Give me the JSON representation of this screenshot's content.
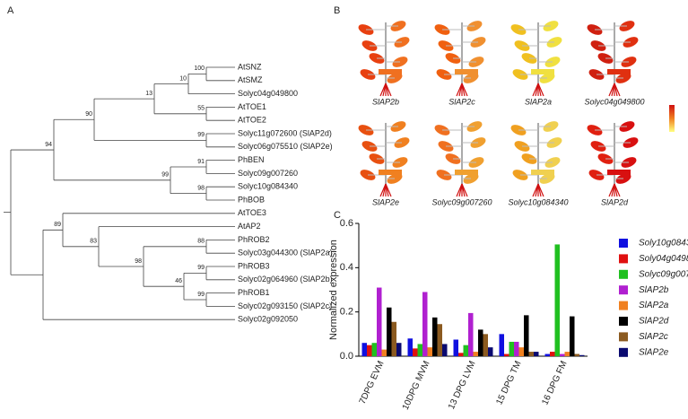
{
  "panel_a": {
    "letter": "A",
    "tree": {
      "children": [
        {
          "support": 94,
          "children": [
            {
              "support": 90,
              "children": [
                {
                  "support": 13,
                  "children": [
                    {
                      "support": 10,
                      "children": [
                        {
                          "support": 100,
                          "children": [
                            {
                              "label": "AtSNZ"
                            },
                            {
                              "label": "AtSMZ"
                            }
                          ]
                        },
                        {
                          "label": "Solyc04g049800"
                        }
                      ]
                    },
                    {
                      "support": 55,
                      "children": [
                        {
                          "label": "AtTOE1"
                        },
                        {
                          "label": "AtTOE2"
                        }
                      ]
                    }
                  ]
                },
                {
                  "support": 99,
                  "children": [
                    {
                      "label": "Solyc11g072600 (SlAP2d)"
                    },
                    {
                      "label": "Solyc06g075510 (SlAP2e)"
                    }
                  ]
                }
              ]
            },
            {
              "support": 99,
              "children": [
                {
                  "support": 91,
                  "children": [
                    {
                      "label": "PhBEN"
                    },
                    {
                      "label": "Solyc09g007260"
                    }
                  ]
                },
                {
                  "support": 98,
                  "children": [
                    {
                      "label": "Solyc10g084340"
                    },
                    {
                      "label": "PhBOB"
                    }
                  ]
                }
              ]
            }
          ]
        },
        {
          "children": [
            {
              "support": 89,
              "children": [
                {
                  "label": "AtTOE3"
                },
                {
                  "support": 83,
                  "children": [
                    {
                      "label": "AtAP2"
                    },
                    {
                      "support": 98,
                      "children": [
                        {
                          "support": 88,
                          "children": [
                            {
                              "label": "PhROB2"
                            },
                            {
                              "label": "Solyc03g044300 (SlAP2a)"
                            }
                          ]
                        },
                        {
                          "support": 46,
                          "children": [
                            {
                              "support": 99,
                              "children": [
                                {
                                  "label": "PhROB3"
                                },
                                {
                                  "label": "Solyc02g064960 (SlAP2b)"
                                }
                              ]
                            },
                            {
                              "support": 99,
                              "children": [
                                {
                                  "label": "PhROB1"
                                },
                                {
                                  "label": "Solyc02g093150 (SlAP2c)"
                                }
                              ]
                            }
                          ]
                        }
                      ]
                    }
                  ]
                }
              ]
            },
            {
              "label": "Solyc02g092050"
            }
          ]
        }
      ]
    }
  },
  "panel_b": {
    "letter": "B",
    "plants": [
      "SlAP2b",
      "SlAP2c",
      "SlAP2a",
      "Solyc04g049800",
      "SlAP2e",
      "Solyc09g007260",
      "Solyc10g084340",
      "SlAP2d"
    ]
  },
  "panel_c": {
    "letter": "C"
  },
  "chart_data": {
    "type": "bar",
    "ylabel": "Normalized expression",
    "categories": [
      "7DPG EVM",
      "10DPG MVM",
      "13 DPG LVM",
      "15 DPG TM",
      "16 DPG FM"
    ],
    "ylim": [
      0,
      0.6
    ],
    "yticks": [
      {
        "value": 0,
        "label": "0.0"
      },
      0.2,
      0.4,
      0.6
    ],
    "series": [
      {
        "name": "Soly10g084340",
        "color": "#1010e0",
        "values": [
          0.06,
          0.08,
          0.075,
          0.1,
          0.01
        ]
      },
      {
        "name": "Soly04g049800",
        "color": "#e01010",
        "values": [
          0.05,
          0.035,
          0.015,
          0.01,
          0.02
        ]
      },
      {
        "name": "Solyc09g007260",
        "color": "#20c020",
        "values": [
          0.06,
          0.055,
          0.05,
          0.065,
          0.505
        ]
      },
      {
        "name": "SlAP2b",
        "color": "#b020d0",
        "values": [
          0.31,
          0.29,
          0.195,
          0.065,
          0.01
        ]
      },
      {
        "name": "SlAP2a",
        "color": "#f08020",
        "values": [
          0.03,
          0.04,
          0.02,
          0.04,
          0.02
        ]
      },
      {
        "name": "SlAP2d",
        "color": "#000000",
        "values": [
          0.22,
          0.175,
          0.12,
          0.185,
          0.18
        ]
      },
      {
        "name": "SlAP2c",
        "color": "#8b5a20",
        "values": [
          0.155,
          0.145,
          0.1,
          0.02,
          0.01
        ]
      },
      {
        "name": "SlAP2e",
        "color": "#0a0a70",
        "values": [
          0.06,
          0.055,
          0.04,
          0.02,
          0.005
        ]
      }
    ]
  }
}
